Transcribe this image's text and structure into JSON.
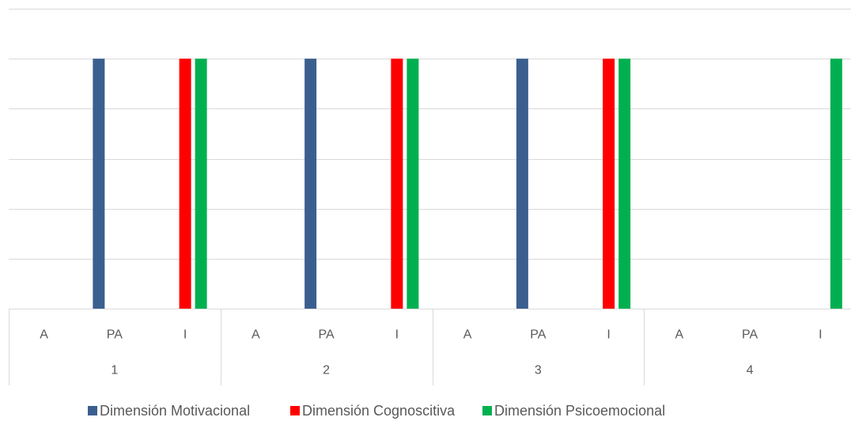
{
  "chart_data": {
    "type": "bar",
    "groups": [
      "1",
      "2",
      "3",
      "4"
    ],
    "subcategories": [
      "A",
      "PA",
      "I"
    ],
    "ylim": [
      0,
      6
    ],
    "grid": true,
    "legend_position": "bottom",
    "series": [
      {
        "name": "Dimensión Motivacional",
        "color": "#3A5F8F",
        "values": [
          [
            0,
            5,
            0
          ],
          [
            0,
            5,
            0
          ],
          [
            0,
            5,
            0
          ],
          [
            0,
            0,
            0
          ]
        ]
      },
      {
        "name": "Dimensión Cognoscitiva",
        "color": "#FF0000",
        "values": [
          [
            0,
            0,
            5
          ],
          [
            0,
            0,
            5
          ],
          [
            0,
            0,
            5
          ],
          [
            0,
            0,
            0
          ]
        ]
      },
      {
        "name": "Dimensión Psicoemocional",
        "color": "#00B050",
        "values": [
          [
            0,
            0,
            5
          ],
          [
            0,
            0,
            5
          ],
          [
            0,
            0,
            5
          ],
          [
            0,
            0,
            5
          ]
        ]
      }
    ]
  }
}
